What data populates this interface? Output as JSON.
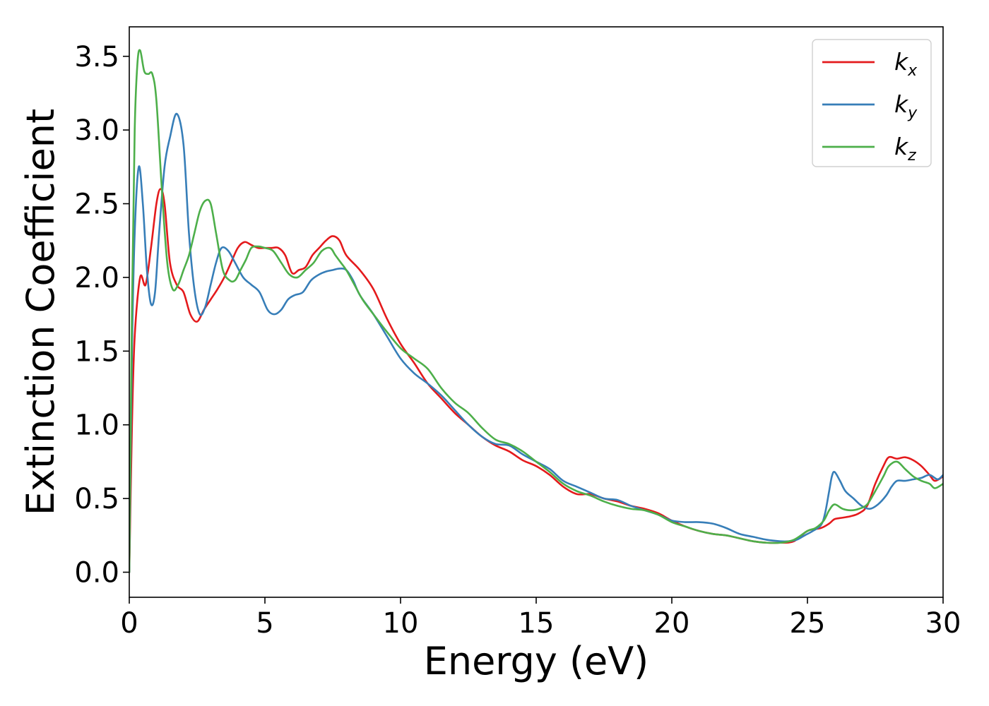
{
  "chart_data": {
    "type": "line",
    "xlabel": "Energy (eV)",
    "ylabel": "Extinction Coefficient",
    "xlim": [
      0,
      30
    ],
    "ylim": [
      -0.17,
      3.7
    ],
    "xticks": [
      0,
      5,
      10,
      15,
      20,
      25,
      30
    ],
    "xtick_labels": [
      "0",
      "5",
      "10",
      "15",
      "20",
      "25",
      "30"
    ],
    "yticks": [
      0.0,
      0.5,
      1.0,
      1.5,
      2.0,
      2.5,
      3.0,
      3.5
    ],
    "ytick_labels": [
      "0.0",
      "0.5",
      "1.0",
      "1.5",
      "2.0",
      "2.5",
      "3.0",
      "3.5"
    ],
    "grid": false,
    "legend_position": "top-right",
    "series": [
      {
        "name": "k",
        "subscript": "x",
        "color": "#e41a1c",
        "x": [
          0,
          0.1,
          0.2,
          0.4,
          0.6,
          0.8,
          1.0,
          1.15,
          1.3,
          1.5,
          1.75,
          2.0,
          2.25,
          2.5,
          2.75,
          3.0,
          3.25,
          3.5,
          3.75,
          4.0,
          4.25,
          4.5,
          4.75,
          5.0,
          5.25,
          5.5,
          5.75,
          6.0,
          6.25,
          6.5,
          6.75,
          7.0,
          7.25,
          7.5,
          7.75,
          8.0,
          8.5,
          9.0,
          9.5,
          10.0,
          10.5,
          11.0,
          11.5,
          12.0,
          12.5,
          13.0,
          13.5,
          14.0,
          14.5,
          15.0,
          15.5,
          16.0,
          16.5,
          17.0,
          17.5,
          18.0,
          18.5,
          19.0,
          19.5,
          20.0,
          20.5,
          21.0,
          21.5,
          22.0,
          22.5,
          23.0,
          23.5,
          24.0,
          24.5,
          25.0,
          25.5,
          25.8,
          26.0,
          26.3,
          26.6,
          26.9,
          27.2,
          27.5,
          27.8,
          28.0,
          28.3,
          28.6,
          28.9,
          29.2,
          29.5,
          29.7,
          30.0
        ],
        "y": [
          0.0,
          1.0,
          1.6,
          2.0,
          1.95,
          2.2,
          2.5,
          2.6,
          2.5,
          2.1,
          1.95,
          1.9,
          1.75,
          1.7,
          1.78,
          1.85,
          1.92,
          2.0,
          2.1,
          2.2,
          2.24,
          2.22,
          2.2,
          2.2,
          2.2,
          2.2,
          2.15,
          2.03,
          2.05,
          2.07,
          2.15,
          2.2,
          2.25,
          2.28,
          2.25,
          2.15,
          2.05,
          1.92,
          1.72,
          1.55,
          1.42,
          1.28,
          1.18,
          1.08,
          1.0,
          0.92,
          0.86,
          0.82,
          0.76,
          0.72,
          0.66,
          0.58,
          0.53,
          0.53,
          0.5,
          0.48,
          0.45,
          0.43,
          0.4,
          0.35,
          0.31,
          0.28,
          0.26,
          0.25,
          0.23,
          0.21,
          0.2,
          0.2,
          0.21,
          0.28,
          0.3,
          0.33,
          0.36,
          0.37,
          0.38,
          0.4,
          0.45,
          0.6,
          0.72,
          0.78,
          0.77,
          0.78,
          0.76,
          0.72,
          0.66,
          0.62,
          0.65
        ]
      },
      {
        "name": "k",
        "subscript": "y",
        "color": "#377eb8",
        "x": [
          0,
          0.1,
          0.2,
          0.35,
          0.5,
          0.65,
          0.8,
          0.95,
          1.1,
          1.3,
          1.5,
          1.75,
          2.0,
          2.2,
          2.4,
          2.6,
          2.8,
          3.0,
          3.2,
          3.4,
          3.65,
          3.9,
          4.2,
          4.5,
          4.8,
          5.1,
          5.35,
          5.6,
          5.85,
          6.1,
          6.4,
          6.7,
          7.0,
          7.25,
          7.5,
          7.75,
          8.0,
          8.25,
          8.5,
          9.0,
          9.5,
          10.0,
          10.5,
          11.0,
          11.5,
          12.0,
          12.5,
          13.0,
          13.5,
          14.0,
          14.5,
          15.0,
          15.5,
          16.0,
          16.5,
          17.0,
          17.5,
          18.0,
          18.5,
          19.0,
          19.5,
          20.0,
          20.5,
          21.0,
          21.5,
          22.0,
          22.5,
          23.0,
          23.5,
          24.0,
          24.3,
          24.6,
          24.9,
          25.2,
          25.5,
          25.65,
          25.8,
          25.9,
          26.0,
          26.2,
          26.4,
          26.7,
          27.0,
          27.3,
          27.6,
          27.9,
          28.1,
          28.3,
          28.6,
          28.9,
          29.2,
          29.5,
          29.8,
          30.0
        ],
        "y": [
          0.0,
          1.5,
          2.3,
          2.75,
          2.5,
          2.05,
          1.82,
          1.9,
          2.3,
          2.75,
          2.95,
          3.11,
          2.9,
          2.3,
          1.92,
          1.75,
          1.8,
          1.95,
          2.1,
          2.2,
          2.18,
          2.1,
          2.0,
          1.95,
          1.9,
          1.78,
          1.75,
          1.78,
          1.85,
          1.88,
          1.9,
          1.98,
          2.02,
          2.04,
          2.05,
          2.06,
          2.05,
          1.98,
          1.88,
          1.75,
          1.6,
          1.45,
          1.35,
          1.28,
          1.2,
          1.1,
          1.0,
          0.92,
          0.87,
          0.86,
          0.8,
          0.75,
          0.7,
          0.62,
          0.58,
          0.54,
          0.5,
          0.49,
          0.45,
          0.42,
          0.39,
          0.35,
          0.34,
          0.34,
          0.33,
          0.3,
          0.26,
          0.24,
          0.22,
          0.21,
          0.21,
          0.22,
          0.25,
          0.28,
          0.32,
          0.4,
          0.55,
          0.65,
          0.68,
          0.62,
          0.55,
          0.5,
          0.45,
          0.43,
          0.46,
          0.52,
          0.58,
          0.62,
          0.62,
          0.63,
          0.64,
          0.66,
          0.63,
          0.66
        ]
      },
      {
        "name": "k",
        "subscript": "z",
        "color": "#4daf4a",
        "x": [
          0,
          0.1,
          0.2,
          0.3,
          0.4,
          0.55,
          0.7,
          0.85,
          1.0,
          1.2,
          1.4,
          1.6,
          1.8,
          2.0,
          2.2,
          2.4,
          2.6,
          2.8,
          3.0,
          3.2,
          3.45,
          3.7,
          3.9,
          4.1,
          4.3,
          4.5,
          4.75,
          5.0,
          5.3,
          5.6,
          5.9,
          6.2,
          6.5,
          6.8,
          7.1,
          7.4,
          7.6,
          7.8,
          8.0,
          8.3,
          8.6,
          9.0,
          9.5,
          10.0,
          10.5,
          11.0,
          11.5,
          12.0,
          12.5,
          13.0,
          13.5,
          14.0,
          14.5,
          15.0,
          15.5,
          16.0,
          16.5,
          17.0,
          17.5,
          18.0,
          18.5,
          19.0,
          19.5,
          20.0,
          20.5,
          21.0,
          21.5,
          22.0,
          22.5,
          23.0,
          23.5,
          24.0,
          24.5,
          25.0,
          25.3,
          25.6,
          25.8,
          26.0,
          26.3,
          26.6,
          26.9,
          27.2,
          27.5,
          27.8,
          28.0,
          28.3,
          28.6,
          28.9,
          29.2,
          29.5,
          29.7,
          30.0
        ],
        "y": [
          0.0,
          1.8,
          3.0,
          3.45,
          3.54,
          3.4,
          3.38,
          3.38,
          3.2,
          2.6,
          2.1,
          1.92,
          1.95,
          2.05,
          2.15,
          2.3,
          2.45,
          2.52,
          2.5,
          2.3,
          2.05,
          1.98,
          1.98,
          2.05,
          2.12,
          2.2,
          2.21,
          2.2,
          2.18,
          2.1,
          2.02,
          2.0,
          2.05,
          2.1,
          2.18,
          2.2,
          2.15,
          2.1,
          2.05,
          1.95,
          1.85,
          1.75,
          1.63,
          1.52,
          1.45,
          1.38,
          1.25,
          1.15,
          1.08,
          0.98,
          0.9,
          0.87,
          0.82,
          0.75,
          0.68,
          0.6,
          0.55,
          0.52,
          0.48,
          0.45,
          0.43,
          0.42,
          0.39,
          0.34,
          0.31,
          0.28,
          0.26,
          0.25,
          0.23,
          0.21,
          0.2,
          0.2,
          0.22,
          0.28,
          0.3,
          0.35,
          0.42,
          0.46,
          0.43,
          0.42,
          0.43,
          0.46,
          0.55,
          0.65,
          0.72,
          0.75,
          0.7,
          0.65,
          0.62,
          0.6,
          0.57,
          0.6
        ]
      }
    ]
  }
}
